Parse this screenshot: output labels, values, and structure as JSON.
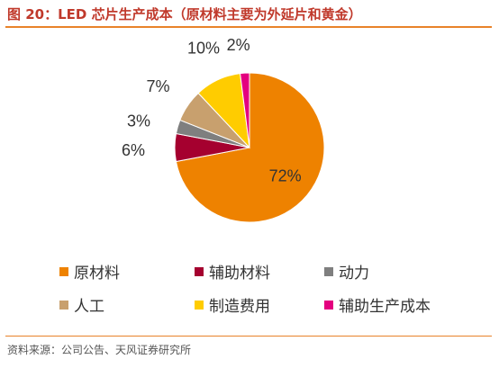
{
  "figure": {
    "title": "图 20：LED 芯片生产成本（原材料主要为外延片和黄金）",
    "source": "资料来源：公司公告、天风证券研究所"
  },
  "chart_data": {
    "type": "pie",
    "title": "",
    "slices": [
      {
        "label": "原材料",
        "value": 72,
        "display": "72%",
        "color": "#ee8200"
      },
      {
        "label": "辅助材料",
        "value": 6,
        "display": "6%",
        "color": "#a5002f"
      },
      {
        "label": "动力",
        "value": 3,
        "display": "3%",
        "color": "#7f7f7f"
      },
      {
        "label": "人工",
        "value": 7,
        "display": "7%",
        "color": "#c8a06e"
      },
      {
        "label": "制造费用",
        "value": 10,
        "display": "10%",
        "color": "#ffcc00"
      },
      {
        "label": "辅助生产成本",
        "value": 2,
        "display": "2%",
        "color": "#e4007f"
      }
    ],
    "legend_placement": "bottom"
  }
}
